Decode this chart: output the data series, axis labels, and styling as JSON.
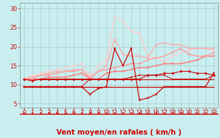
{
  "title": "",
  "xlabel": "Vent moyen/en rafales ( km/h )",
  "bg_color": "#c8eef0",
  "grid_color": "#aacccc",
  "x_ticks": [
    0,
    1,
    2,
    3,
    4,
    5,
    6,
    7,
    8,
    9,
    10,
    11,
    12,
    13,
    14,
    15,
    16,
    17,
    18,
    19,
    20,
    21,
    22,
    23
  ],
  "y_ticks": [
    5,
    10,
    15,
    20,
    25,
    30
  ],
  "ylim": [
    4.0,
    31.5
  ],
  "xlim": [
    -0.5,
    23.5
  ],
  "lines": [
    {
      "y": [
        9.5,
        9.5,
        9.5,
        9.5,
        9.5,
        9.5,
        9.5,
        9.5,
        7.5,
        9.0,
        9.5,
        19.5,
        15.0,
        19.5,
        6.0,
        6.5,
        7.5,
        9.5,
        9.5,
        9.5,
        9.5,
        9.5,
        9.5,
        13.0
      ],
      "color": "#cc0000",
      "lw": 0.9,
      "marker": "s",
      "ms": 2.0,
      "zorder": 5
    },
    {
      "y": [
        9.5,
        9.5,
        9.5,
        9.5,
        9.5,
        9.5,
        9.5,
        9.5,
        9.5,
        9.5,
        9.5,
        9.5,
        9.5,
        9.5,
        9.5,
        9.5,
        9.5,
        9.5,
        9.5,
        9.5,
        9.5,
        9.5,
        9.5,
        9.5
      ],
      "color": "#cc0000",
      "lw": 0.9,
      "marker": null,
      "ms": 0,
      "zorder": 4
    },
    {
      "y": [
        11.5,
        11.5,
        11.5,
        11.5,
        11.5,
        11.5,
        11.5,
        11.5,
        11.5,
        11.5,
        11.5,
        11.5,
        11.5,
        11.5,
        11.5,
        11.5,
        11.5,
        11.5,
        11.5,
        11.5,
        11.5,
        11.5,
        11.5,
        11.5
      ],
      "color": "#cc0000",
      "lw": 0.8,
      "marker": null,
      "ms": 0,
      "zorder": 3
    },
    {
      "y": [
        9.5,
        9.5,
        9.5,
        9.5,
        9.5,
        9.5,
        9.5,
        9.5,
        11.5,
        11.5,
        11.5,
        11.5,
        11.5,
        12.0,
        12.5,
        12.5,
        12.5,
        12.5,
        11.5,
        11.5,
        11.5,
        11.5,
        11.5,
        12.5
      ],
      "color": "#cc2222",
      "lw": 0.8,
      "marker": "s",
      "ms": 1.8,
      "zorder": 4
    },
    {
      "y": [
        11.5,
        11.0,
        11.5,
        11.5,
        11.5,
        11.5,
        11.5,
        11.5,
        11.5,
        11.5,
        11.5,
        11.5,
        11.5,
        11.5,
        11.5,
        12.5,
        12.5,
        13.0,
        13.0,
        13.5,
        13.5,
        13.0,
        13.0,
        12.5
      ],
      "color": "#cc0000",
      "lw": 0.8,
      "marker": "D",
      "ms": 1.8,
      "zorder": 4
    },
    {
      "y": [
        11.5,
        11.5,
        11.5,
        12.0,
        12.0,
        12.0,
        12.5,
        13.0,
        11.5,
        11.5,
        13.0,
        13.5,
        13.5,
        14.0,
        14.5,
        14.5,
        15.0,
        15.5,
        15.5,
        15.5,
        16.0,
        16.5,
        17.5,
        17.5
      ],
      "color": "#ff7777",
      "lw": 1.0,
      "marker": "s",
      "ms": 2.0,
      "zorder": 3
    },
    {
      "y": [
        11.5,
        11.5,
        12.5,
        12.5,
        13.0,
        13.5,
        13.5,
        14.0,
        11.5,
        13.5,
        14.0,
        14.5,
        15.0,
        15.5,
        15.5,
        16.5,
        17.0,
        17.5,
        18.5,
        19.5,
        18.0,
        17.5,
        17.5,
        18.5
      ],
      "color": "#ff9999",
      "lw": 1.0,
      "marker": "s",
      "ms": 2.0,
      "zorder": 3
    },
    {
      "y": [
        11.5,
        12.0,
        12.5,
        13.0,
        13.5,
        13.5,
        14.0,
        14.0,
        12.0,
        13.5,
        15.0,
        22.0,
        18.0,
        17.5,
        17.5,
        17.0,
        20.5,
        21.0,
        20.5,
        20.5,
        19.5,
        19.5,
        19.5,
        19.5
      ],
      "color": "#ffaaaa",
      "lw": 1.0,
      "marker": "s",
      "ms": 2.0,
      "zorder": 3
    },
    {
      "y": [
        11.5,
        12.5,
        13.0,
        13.5,
        14.0,
        14.5,
        15.0,
        15.5,
        12.5,
        15.0,
        16.5,
        28.0,
        26.5,
        24.0,
        23.5,
        17.5,
        17.0,
        16.0,
        17.5,
        18.5,
        19.0,
        19.5,
        19.5,
        19.0
      ],
      "color": "#ffcccc",
      "lw": 1.0,
      "marker": "s",
      "ms": 2.0,
      "zorder": 2
    }
  ],
  "arrow_color": "#cc0000",
  "xlabel_color": "#cc0000",
  "xlabel_fontsize": 7.5,
  "tick_fontsize": 6,
  "tick_color": "#cc0000"
}
